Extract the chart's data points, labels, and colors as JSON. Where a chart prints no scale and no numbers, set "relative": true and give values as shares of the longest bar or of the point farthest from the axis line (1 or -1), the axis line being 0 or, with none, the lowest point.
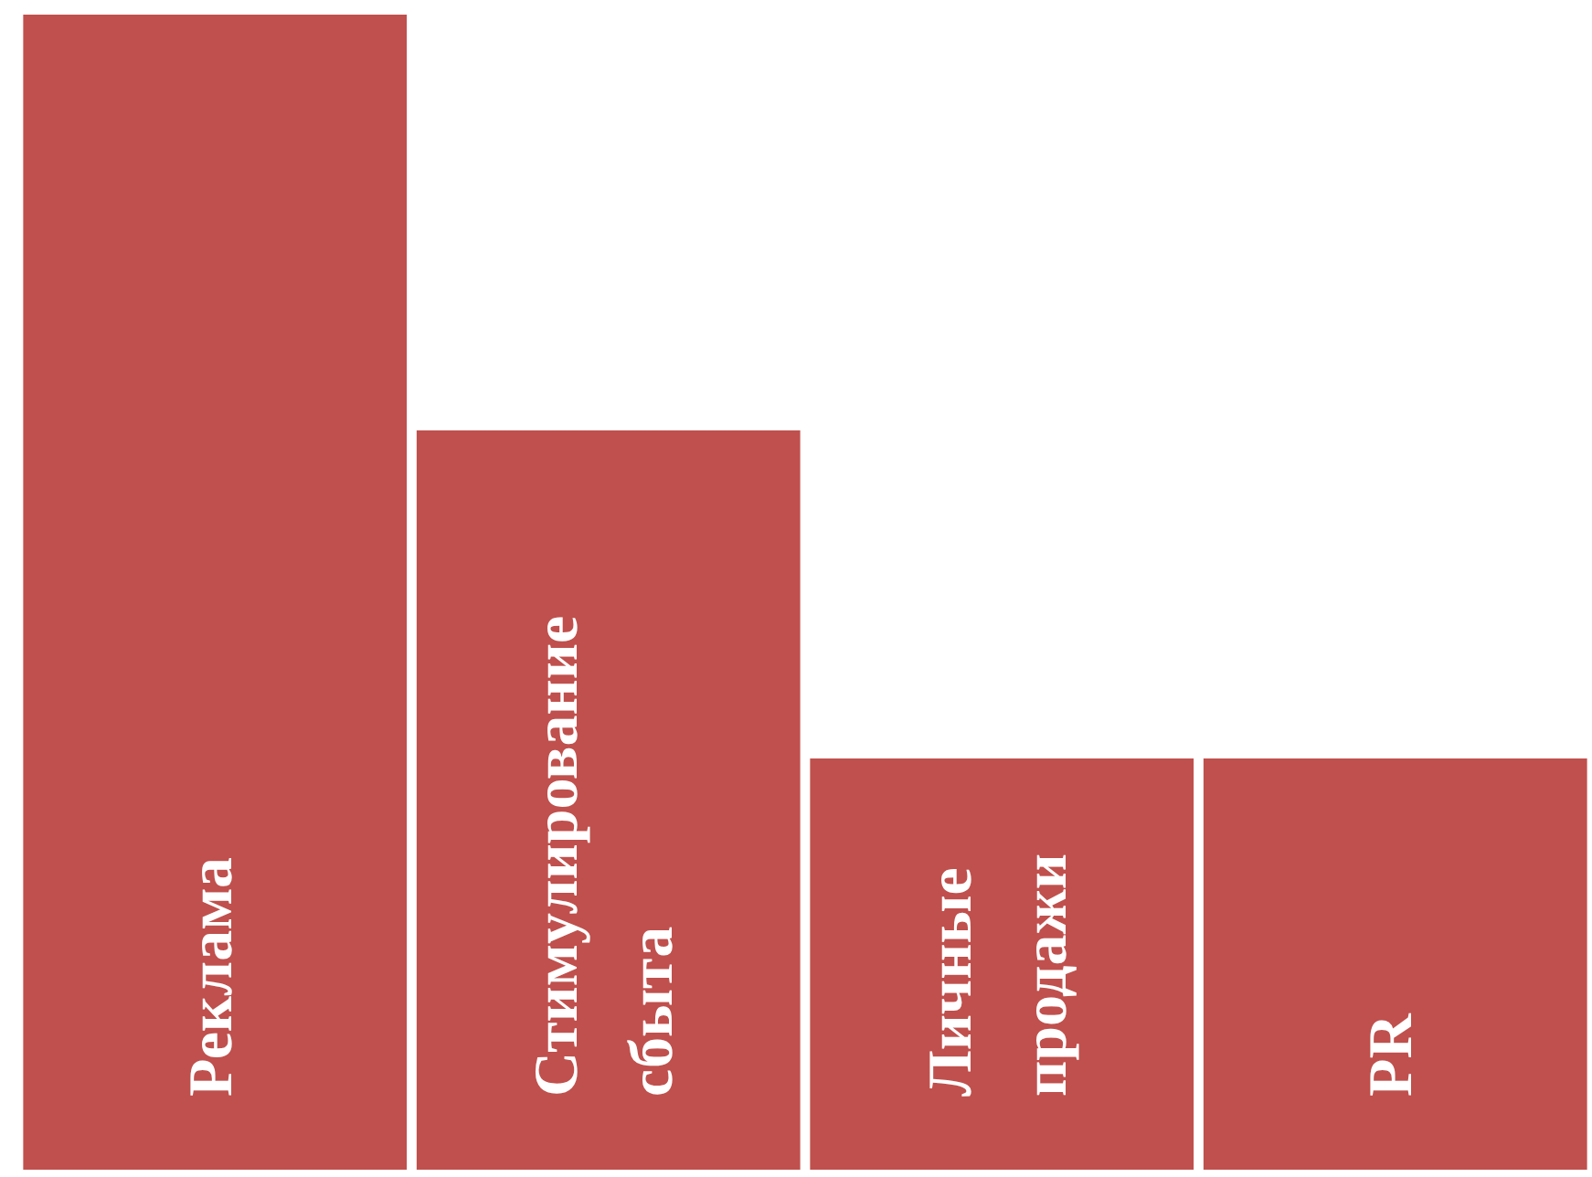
{
  "chart_data": {
    "type": "bar",
    "relative": true,
    "color": "#c0504d",
    "categories": [
      "Реклама",
      "Стимулирование сбыта",
      "Личные продажи",
      "PR"
    ],
    "values": [
      1,
      0.64,
      0.356,
      0.356
    ]
  }
}
